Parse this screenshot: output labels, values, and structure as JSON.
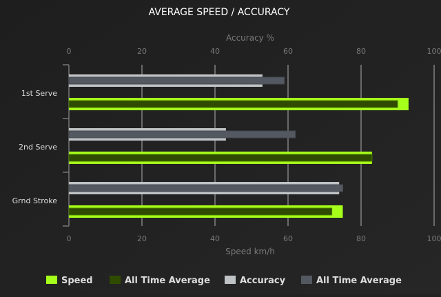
{
  "chart_data": {
    "type": "bar",
    "orientation": "horizontal",
    "title": "AVERAGE SPEED / ACCURACY",
    "top_axis_label": "Accuracy %",
    "bottom_axis_label": "Speed km/h",
    "xlim": [
      0,
      100
    ],
    "ticks": [
      "0",
      "20",
      "40",
      "60",
      "80",
      "100"
    ],
    "grid": true,
    "legend_placement": "bottom",
    "categories": [
      "1st Serve",
      "2nd Serve",
      "Grnd Stroke"
    ],
    "series": [
      {
        "name": "Speed",
        "axis": "bottom",
        "color": "#a6ff1a",
        "values": [
          93,
          83,
          75
        ]
      },
      {
        "name": "All Time Average",
        "axis": "bottom",
        "color": "#2f4b00",
        "values": [
          90,
          83,
          72
        ]
      },
      {
        "name": "Accuracy",
        "axis": "top",
        "color": "#c0c3c5",
        "values": [
          53,
          43,
          74
        ]
      },
      {
        "name": "All Time Average",
        "axis": "top",
        "color": "#545961",
        "values": [
          59,
          62,
          75
        ]
      }
    ]
  }
}
